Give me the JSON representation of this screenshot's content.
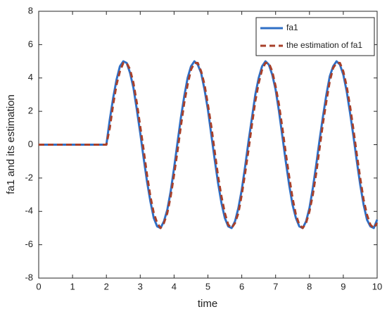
{
  "chart_data": {
    "type": "line",
    "xlabel": "time",
    "ylabel": "fa1 and its estimation",
    "xlim": [
      0,
      10
    ],
    "ylim": [
      -8,
      8
    ],
    "xticks": [
      0,
      1,
      2,
      3,
      4,
      5,
      6,
      7,
      8,
      9,
      10
    ],
    "yticks": [
      -8,
      -6,
      -4,
      -2,
      0,
      2,
      4,
      6,
      8
    ],
    "grid": false,
    "legend": "top-right",
    "x": [
      0,
      0.1,
      0.2,
      0.3,
      0.4,
      0.5,
      0.6,
      0.7,
      0.8,
      0.9,
      1,
      1.1,
      1.2,
      1.3,
      1.4,
      1.5,
      1.6,
      1.7,
      1.8,
      1.9,
      2,
      2.1,
      2.2,
      2.3,
      2.4,
      2.5,
      2.6,
      2.7,
      2.8,
      2.9,
      3,
      3.1,
      3.2,
      3.3,
      3.4,
      3.5,
      3.6,
      3.7,
      3.8,
      3.9,
      4,
      4.1,
      4.2,
      4.3,
      4.4,
      4.5,
      4.6,
      4.7,
      4.8,
      4.9,
      5,
      5.1,
      5.2,
      5.3,
      5.4,
      5.5,
      5.6,
      5.7,
      5.8,
      5.9,
      6,
      6.1,
      6.2,
      6.3,
      6.4,
      6.5,
      6.6,
      6.7,
      6.8,
      6.9,
      7,
      7.1,
      7.2,
      7.3,
      7.4,
      7.5,
      7.6,
      7.7,
      7.8,
      7.9,
      8,
      8.1,
      8.2,
      8.3,
      8.4,
      8.5,
      8.6,
      8.7,
      8.8,
      8.9,
      9,
      9.1,
      9.2,
      9.3,
      9.4,
      9.5,
      9.6,
      9.7,
      9.8,
      9.9,
      10
    ],
    "series": [
      {
        "name": "fa1",
        "color": "#2f6fc6",
        "dash": false,
        "values": [
          0,
          0,
          0,
          0,
          0,
          0,
          0,
          0,
          0,
          0,
          0,
          0,
          0,
          0,
          0,
          0,
          0,
          0,
          0,
          0,
          0,
          1.5,
          2.8,
          3.9,
          4.7,
          5.0,
          4.9,
          4.3,
          3.4,
          2.1,
          0.7,
          -0.8,
          -2.2,
          -3.4,
          -4.4,
          -4.9,
          -5.0,
          -4.6,
          -3.9,
          -2.8,
          -1.4,
          0.1,
          1.6,
          2.9,
          4.0,
          4.7,
          5.0,
          4.8,
          4.3,
          3.3,
          2.1,
          0.6,
          -0.9,
          -2.3,
          -3.5,
          -4.4,
          -4.9,
          -5.0,
          -4.6,
          -3.8,
          -2.7,
          -1.3,
          0.2,
          1.6,
          3.0,
          4.0,
          4.7,
          5.0,
          4.8,
          4.2,
          3.3,
          2.0,
          0.5,
          -1.0,
          -2.4,
          -3.6,
          -4.4,
          -4.9,
          -5.0,
          -4.6,
          -3.8,
          -2.6,
          -1.2,
          0.3,
          1.7,
          3.0,
          4.1,
          4.7,
          5.0,
          4.8,
          4.2,
          3.2,
          1.9,
          0.5,
          -1.0,
          -2.4,
          -3.6,
          -4.5,
          -4.9,
          -5.0,
          -4.5
        ]
      },
      {
        "name": "the estimation of fa1",
        "color": "#a8402a",
        "dash": true,
        "values": [
          0,
          0,
          0,
          0,
          0,
          0,
          0,
          0,
          0,
          0,
          0,
          0,
          0,
          0,
          0,
          0,
          0,
          0,
          0,
          0,
          0,
          1.0,
          2.4,
          3.6,
          4.4,
          4.9,
          4.9,
          4.5,
          3.7,
          2.5,
          1.1,
          -0.3,
          -1.8,
          -3.1,
          -4.1,
          -4.7,
          -5.0,
          -4.7,
          -4.1,
          -3.1,
          -1.8,
          -0.4,
          1.1,
          2.5,
          3.6,
          4.5,
          4.9,
          4.9,
          4.4,
          3.6,
          2.4,
          1.1,
          -0.4,
          -1.9,
          -3.1,
          -4.1,
          -4.8,
          -5.0,
          -4.7,
          -4.1,
          -3.0,
          -1.7,
          -0.3,
          1.2,
          2.6,
          3.7,
          4.5,
          4.9,
          4.9,
          4.4,
          3.5,
          2.4,
          1.0,
          -0.5,
          -1.9,
          -3.2,
          -4.2,
          -4.8,
          -5.0,
          -4.7,
          -4.0,
          -3.0,
          -1.7,
          -0.2,
          1.3,
          2.6,
          3.8,
          4.6,
          4.9,
          4.9,
          4.4,
          3.5,
          2.3,
          0.9,
          -0.6,
          -2.0,
          -3.3,
          -4.2,
          -4.8,
          -5.0,
          -4.7
        ]
      }
    ]
  }
}
